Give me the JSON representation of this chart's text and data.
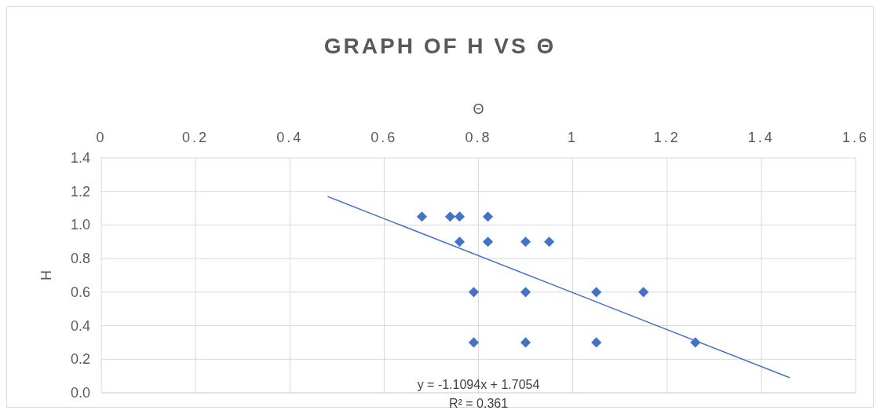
{
  "chart_data": {
    "type": "scatter",
    "title": "GRAPH OF H  VS  Θ",
    "xlabel": "Θ",
    "ylabel": "H",
    "xlim": [
      0,
      1.6
    ],
    "xticks": [
      0,
      0.2,
      0.4,
      0.6,
      0.8,
      1,
      1.2,
      1.4,
      1.6
    ],
    "ylim": [
      0,
      1.4
    ],
    "yticks": [
      {
        "value": 0,
        "label": "0.0"
      },
      {
        "value": 0.2,
        "label": "0.2"
      },
      {
        "value": 0.4,
        "label": "0.4"
      },
      {
        "value": 0.6,
        "label": "0.6"
      },
      {
        "value": 0.8,
        "label": "0.8"
      },
      {
        "value": 1,
        "label": "1.0"
      },
      {
        "value": 1.2,
        "label": "1.2"
      },
      {
        "value": 1.4,
        "label": "1.4"
      }
    ],
    "grid": true,
    "series": [
      {
        "marker": "diamond",
        "color": "#4472c4",
        "x": [
          0.68,
          0.74,
          0.76,
          0.82,
          0.76,
          0.82,
          0.9,
          0.95,
          0.79,
          0.9,
          1.05,
          1.15,
          0.79,
          0.9,
          1.05,
          1.26
        ],
        "values": [
          1.05,
          1.05,
          1.05,
          1.05,
          0.9,
          0.9,
          0.9,
          0.9,
          0.6,
          0.6,
          0.6,
          0.6,
          0.3,
          0.3,
          0.3,
          0.3
        ]
      },
      {
        "type": "line",
        "marker": "none",
        "color": "#4472c4",
        "x": [
          0.48,
          1.46
        ],
        "values": [
          1.17,
          0.09
        ]
      }
    ],
    "annotations": [
      "y = -1.1094x + 1.7054",
      "R² = 0.361"
    ]
  }
}
